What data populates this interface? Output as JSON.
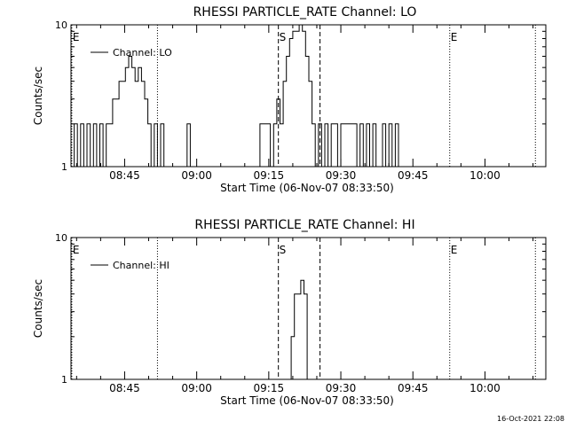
{
  "footer_timestamp": "16-Oct-2021 22:08",
  "colors": {
    "ink": "#000000",
    "background": "#ffffff"
  },
  "chart_data": [
    {
      "type": "line",
      "title": "RHESSI PARTICLE_RATE Channel: LO",
      "xlabel": "Start Time (06-Nov-07 08:33:50)",
      "ylabel": "Counts/sec",
      "y_scale": "log",
      "ylim": [
        1,
        10
      ],
      "yticks": [
        "1",
        "10"
      ],
      "xlim": [
        "08:33:50",
        "10:12:40"
      ],
      "xticks": [
        "08:45",
        "09:00",
        "09:15",
        "09:30",
        "09:45",
        "10:00"
      ],
      "legend": {
        "position": "top-left",
        "entries": [
          "Channel: LO"
        ]
      },
      "markers": [
        {
          "time": "08:34:00",
          "label": "E",
          "style": "dotted"
        },
        {
          "time": "08:51:50",
          "label": "",
          "style": "dotted"
        },
        {
          "time": "09:17:00",
          "label": "S",
          "style": "dashed"
        },
        {
          "time": "09:25:40",
          "label": "",
          "style": "dashed"
        },
        {
          "time": "09:52:40",
          "label": "E",
          "style": "dotted"
        },
        {
          "time": "10:10:30",
          "label": "",
          "style": "dotted"
        }
      ],
      "series": [
        {
          "step": true,
          "x": [
            "08:33:50",
            "08:34:30",
            "08:35:10",
            "08:35:50",
            "08:36:30",
            "08:37:10",
            "08:37:50",
            "08:38:30",
            "08:39:10",
            "08:39:50",
            "08:40:30",
            "08:41:10",
            "08:41:50",
            "08:42:30",
            "08:43:10",
            "08:43:50",
            "08:44:30",
            "08:45:10",
            "08:45:50",
            "08:46:30",
            "08:47:10",
            "08:47:50",
            "08:48:30",
            "08:49:10",
            "08:49:50",
            "08:50:30",
            "08:51:10",
            "08:51:50",
            "08:52:30",
            "08:53:10",
            "08:58:00",
            "08:58:40",
            "09:12:30",
            "09:13:10",
            "09:15:20",
            "09:16:00",
            "09:16:40",
            "09:17:20",
            "09:18:00",
            "09:18:40",
            "09:19:20",
            "09:20:00",
            "09:20:40",
            "09:21:20",
            "09:22:00",
            "09:22:40",
            "09:23:20",
            "09:24:00",
            "09:24:40",
            "09:25:20",
            "09:26:00",
            "09:26:40",
            "09:27:20",
            "09:28:00",
            "09:28:40",
            "09:29:20",
            "09:30:00",
            "09:30:40",
            "09:31:20",
            "09:32:00",
            "09:32:40",
            "09:33:20",
            "09:34:00",
            "09:34:40",
            "09:35:20",
            "09:36:00",
            "09:36:40",
            "09:37:20",
            "09:38:00",
            "09:38:40",
            "09:39:20",
            "09:40:00",
            "09:40:40",
            "09:41:20",
            "09:42:00"
          ],
          "y": [
            1,
            2,
            1,
            2,
            1,
            2,
            1,
            2,
            1,
            2,
            1,
            2,
            2,
            3,
            3,
            4,
            4,
            5,
            6,
            5,
            4,
            5,
            4,
            3,
            2,
            1,
            2,
            1,
            2,
            1,
            2,
            1,
            1,
            2,
            1,
            2,
            3,
            2,
            4,
            6,
            8,
            9,
            9,
            10,
            9,
            6,
            4,
            2,
            1,
            2,
            1,
            2,
            1,
            2,
            2,
            1,
            2,
            2,
            2,
            2,
            2,
            1,
            2,
            1,
            2,
            1,
            2,
            1,
            1,
            2,
            1,
            2,
            1,
            2,
            1
          ]
        }
      ]
    },
    {
      "type": "line",
      "title": "RHESSI PARTICLE_RATE Channel: HI",
      "xlabel": "Start Time (06-Nov-07 08:33:50)",
      "ylabel": "Counts/sec",
      "y_scale": "log",
      "ylim": [
        1,
        10
      ],
      "yticks": [
        "1",
        "10"
      ],
      "xlim": [
        "08:33:50",
        "10:12:40"
      ],
      "xticks": [
        "08:45",
        "09:00",
        "09:15",
        "09:30",
        "09:45",
        "10:00"
      ],
      "legend": {
        "position": "top-left",
        "entries": [
          "Channel: HI"
        ]
      },
      "markers": [
        {
          "time": "08:34:00",
          "label": "E",
          "style": "dotted"
        },
        {
          "time": "08:51:50",
          "label": "",
          "style": "dotted"
        },
        {
          "time": "09:17:00",
          "label": "S",
          "style": "dashed"
        },
        {
          "time": "09:25:40",
          "label": "",
          "style": "dashed"
        },
        {
          "time": "09:52:40",
          "label": "E",
          "style": "dotted"
        },
        {
          "time": "10:10:30",
          "label": "",
          "style": "dotted"
        }
      ],
      "series": [
        {
          "step": true,
          "x": [
            "09:19:00",
            "09:19:40",
            "09:20:20",
            "09:21:00",
            "09:21:40",
            "09:22:20",
            "09:23:00"
          ],
          "y": [
            1,
            2,
            4,
            4,
            5,
            4,
            1
          ]
        }
      ]
    }
  ]
}
